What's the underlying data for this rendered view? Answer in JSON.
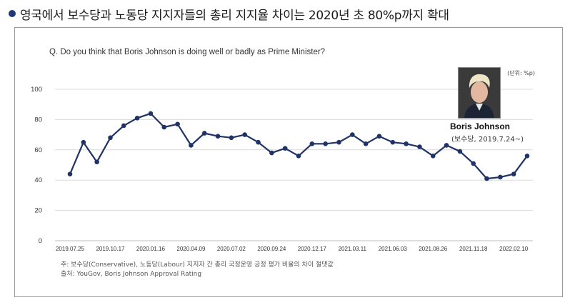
{
  "headline": {
    "text": "영국에서 보수당과 노동당 지지자들의 총리 지지율 차이는 2020년 초 80%p까지 확대"
  },
  "question": "Q. Do you think that Boris Johnson is doing well or badly as Prime Minister?",
  "unit": "(단위: %p)",
  "person": {
    "name": "Boris Johnson",
    "sub": "(보수당, 2019.7.24~)"
  },
  "notes": {
    "line1": "주: 보수당(Conservative), 노동당(Labour) 지지자 간 총리 국정운영 긍정 평가 비율의 차이 절댓값",
    "line2": "출처: YouGov, Boris Johnson Approval Rating"
  },
  "colors": {
    "line": "#1f3366",
    "grid": "#d9d9d9",
    "bullet": "#1f3a7a"
  },
  "chart_data": {
    "type": "line",
    "title": "Q. Do you think that Boris Johnson is doing well or badly as Prime Minister?",
    "ylim": [
      0,
      100
    ],
    "yticks": [
      0,
      20,
      40,
      60,
      80,
      100
    ],
    "grid": true,
    "xtick_labels": [
      "2019.07.25",
      "2019.10.17",
      "2020.01.16",
      "2020.04.09",
      "2020.07.02",
      "2020.09.24",
      "2020.12.17",
      "2021.03.11",
      "2021.06.03",
      "2021.08.26",
      "2021.11.18",
      "2022.02.10"
    ],
    "series": [
      {
        "values": [
          44,
          65,
          52,
          68,
          76,
          81,
          84,
          75,
          77,
          63,
          71,
          69,
          68,
          70,
          65,
          58,
          61,
          56,
          64,
          64,
          65,
          70,
          64,
          69,
          65,
          64,
          62,
          56,
          63,
          59,
          51,
          41,
          42,
          44,
          56
        ]
      }
    ]
  }
}
